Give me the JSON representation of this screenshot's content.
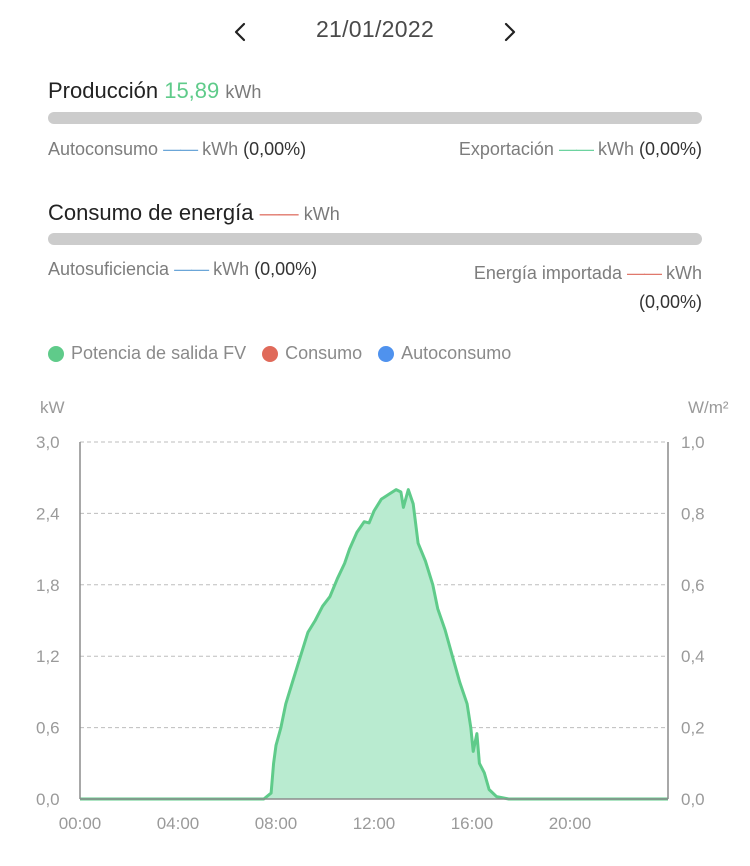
{
  "date_nav": {
    "date": "21/01/2022",
    "prev_icon": "chevron-left-icon",
    "next_icon": "chevron-right-icon"
  },
  "production": {
    "label": "Producción",
    "value": "15,89",
    "unit": "kWh",
    "value_color": "#5fcb8a",
    "self_consumption": {
      "label": "Autoconsumo",
      "value": "——",
      "unit": "kWh",
      "percent": "(0,00%)"
    },
    "export": {
      "label": "Exportación",
      "value": "——",
      "unit": "kWh",
      "percent": "(0,00%)"
    }
  },
  "consumption": {
    "label": "Consumo de energía",
    "value": "——",
    "unit": "kWh",
    "self_sufficiency": {
      "label": "Autosuficiencia",
      "value": "——",
      "unit": "kWh",
      "percent": "(0,00%)"
    },
    "imported": {
      "label": "Energía importada",
      "value": "——",
      "unit": "kWh",
      "percent": "(0,00%)"
    }
  },
  "legend": [
    {
      "label": "Potencia de salida FV",
      "color": "#5fcb8a"
    },
    {
      "label": "Consumo",
      "color": "#e06a5a"
    },
    {
      "label": "Autoconsumo",
      "color": "#4f92ee"
    }
  ],
  "chart_data": {
    "type": "area",
    "left_axis": {
      "unit": "kW",
      "ticks": [
        "3,0",
        "2,4",
        "1,8",
        "1,2",
        "0,6",
        "0,0"
      ],
      "range": [
        0,
        3.0
      ]
    },
    "right_axis": {
      "unit": "W/m²",
      "ticks": [
        "1,0",
        "0,8",
        "0,6",
        "0,4",
        "0,2",
        "0,0"
      ],
      "range": [
        0,
        1.0
      ]
    },
    "x_ticks": [
      "00:00",
      "04:00",
      "08:00",
      "12:00",
      "16:00",
      "20:00"
    ],
    "x_range_hours": [
      0,
      24
    ],
    "grid": "horizontal dashed",
    "series": [
      {
        "name": "Potencia de salida FV",
        "color": "#5fcb8a",
        "fill": "#b9ebd0",
        "points": [
          [
            0,
            0
          ],
          [
            7.5,
            0
          ],
          [
            7.8,
            0.05
          ],
          [
            7.9,
            0.3
          ],
          [
            8.0,
            0.45
          ],
          [
            8.2,
            0.6
          ],
          [
            8.4,
            0.8
          ],
          [
            8.7,
            1.0
          ],
          [
            9.0,
            1.2
          ],
          [
            9.3,
            1.4
          ],
          [
            9.6,
            1.5
          ],
          [
            9.9,
            1.62
          ],
          [
            10.2,
            1.7
          ],
          [
            10.5,
            1.85
          ],
          [
            10.8,
            1.98
          ],
          [
            11.0,
            2.1
          ],
          [
            11.3,
            2.24
          ],
          [
            11.6,
            2.33
          ],
          [
            11.8,
            2.32
          ],
          [
            12.0,
            2.42
          ],
          [
            12.3,
            2.52
          ],
          [
            12.6,
            2.56
          ],
          [
            12.9,
            2.6
          ],
          [
            13.1,
            2.58
          ],
          [
            13.2,
            2.45
          ],
          [
            13.4,
            2.6
          ],
          [
            13.6,
            2.48
          ],
          [
            13.8,
            2.15
          ],
          [
            14.1,
            2.0
          ],
          [
            14.4,
            1.8
          ],
          [
            14.6,
            1.6
          ],
          [
            14.9,
            1.42
          ],
          [
            15.2,
            1.2
          ],
          [
            15.5,
            0.98
          ],
          [
            15.8,
            0.8
          ],
          [
            15.95,
            0.6
          ],
          [
            16.05,
            0.4
          ],
          [
            16.2,
            0.55
          ],
          [
            16.3,
            0.3
          ],
          [
            16.5,
            0.22
          ],
          [
            16.7,
            0.08
          ],
          [
            17.0,
            0.02
          ],
          [
            17.5,
            0
          ],
          [
            24,
            0
          ]
        ]
      }
    ]
  }
}
